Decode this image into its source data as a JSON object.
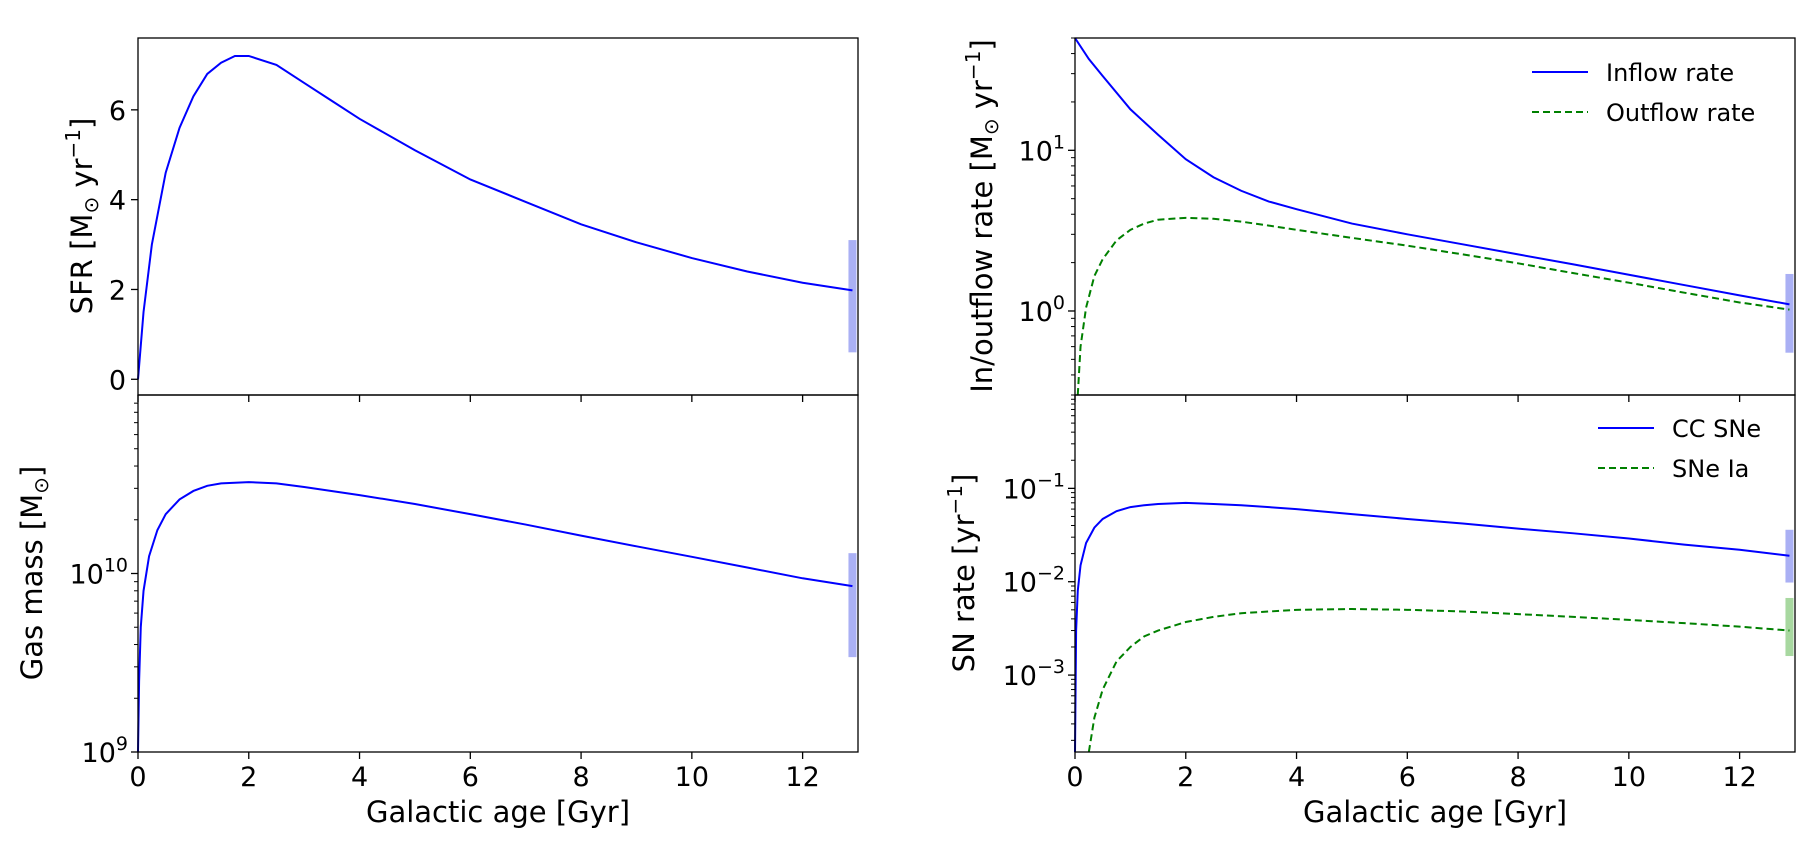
{
  "colors": {
    "inflow": "#0000ff",
    "outflow": "#008000",
    "band_blue": "#aab0f4",
    "band_green": "#a8d8a0"
  },
  "chart_data": [
    {
      "id": "sfr",
      "type": "line",
      "ylabel_main": "SFR [M",
      "ylabel_tail": " yr",
      "ylabel_sup": "−1",
      "ylabel_end": "]",
      "xlabel": "",
      "xlim": [
        0,
        13
      ],
      "ylim": [
        -0.35,
        7.6
      ],
      "yscale": "linear",
      "xticks": [
        0,
        2,
        4,
        6,
        8,
        10,
        12
      ],
      "yticks": [
        0,
        2,
        4,
        6
      ],
      "ytick_labels": [
        "0",
        "2",
        "4",
        "6"
      ],
      "band": {
        "x": 12.9,
        "range": [
          0.6,
          3.1
        ]
      },
      "series": [
        {
          "name": "SFR",
          "style": "solid",
          "x": [
            0,
            0.1,
            0.25,
            0.5,
            0.75,
            1,
            1.25,
            1.5,
            1.75,
            2,
            2.5,
            3,
            3.5,
            4,
            5,
            6,
            7,
            8,
            9,
            10,
            11,
            12,
            12.9
          ],
          "y": [
            0,
            1.5,
            3.0,
            4.6,
            5.6,
            6.3,
            6.8,
            7.05,
            7.2,
            7.2,
            7.0,
            6.6,
            6.2,
            5.8,
            5.1,
            4.45,
            3.95,
            3.45,
            3.05,
            2.7,
            2.4,
            2.15,
            1.98
          ]
        }
      ]
    },
    {
      "id": "inout",
      "type": "line",
      "ylabel_main": "In/outflow rate [M",
      "ylabel_tail": " yr",
      "ylabel_sup": "−1",
      "ylabel_end": "]",
      "xlabel": "",
      "xlim": [
        0,
        13
      ],
      "ylim": [
        0.3,
        50
      ],
      "yscale": "log",
      "xticks": [
        0,
        2,
        4,
        6,
        8,
        10,
        12
      ],
      "ytick_values": [
        1,
        10
      ],
      "ytick_base": [
        "10",
        "10"
      ],
      "ytick_exp": [
        "0",
        "1"
      ],
      "band": {
        "x": 12.9,
        "range": [
          0.55,
          1.7
        ]
      },
      "legend": [
        "Inflow rate",
        "Outflow rate"
      ],
      "series": [
        {
          "name": "Inflow rate",
          "style": "solid",
          "x": [
            0,
            0.25,
            0.5,
            1,
            1.5,
            2,
            2.5,
            3,
            3.5,
            4,
            5,
            6,
            7,
            8,
            9,
            10,
            11,
            12,
            12.9
          ],
          "y": [
            50,
            37,
            29,
            18,
            12.5,
            8.8,
            6.8,
            5.6,
            4.8,
            4.3,
            3.5,
            3.0,
            2.6,
            2.25,
            1.95,
            1.68,
            1.45,
            1.25,
            1.1
          ]
        },
        {
          "name": "Outflow rate",
          "style": "dashed",
          "x": [
            0.05,
            0.1,
            0.2,
            0.35,
            0.5,
            0.75,
            1,
            1.25,
            1.5,
            2,
            2.5,
            3,
            3.5,
            4,
            5,
            6,
            7,
            8,
            9,
            10,
            11,
            12,
            12.9
          ],
          "y": [
            0.3,
            0.6,
            1.05,
            1.65,
            2.1,
            2.75,
            3.2,
            3.5,
            3.7,
            3.8,
            3.75,
            3.6,
            3.4,
            3.2,
            2.85,
            2.55,
            2.25,
            1.98,
            1.72,
            1.5,
            1.3,
            1.13,
            1.02
          ]
        }
      ]
    },
    {
      "id": "gas",
      "type": "line",
      "ylabel_main": "Gas mass [M",
      "ylabel_tail": "",
      "ylabel_sup": "",
      "ylabel_end": "]",
      "xlabel": "Galactic age [Gyr]",
      "xlim": [
        0,
        13
      ],
      "ylim": [
        1000000000.0,
        100000000000.0
      ],
      "yscale": "log",
      "xticks": [
        0,
        2,
        4,
        6,
        8,
        10,
        12
      ],
      "ytick_values": [
        1000000000.0,
        10000000000.0
      ],
      "ytick_base": [
        "10",
        "10"
      ],
      "ytick_exp": [
        "9",
        "10"
      ],
      "band": {
        "x": 12.9,
        "range": [
          3400000000.0,
          13000000000.0
        ]
      },
      "series": [
        {
          "name": "Gas mass",
          "style": "solid",
          "x": [
            0,
            0.02,
            0.05,
            0.1,
            0.2,
            0.35,
            0.5,
            0.75,
            1,
            1.25,
            1.5,
            2,
            2.5,
            3,
            4,
            5,
            6,
            7,
            8,
            9,
            10,
            11,
            12,
            12.9
          ],
          "y": [
            1000000000.0,
            2500000000.0,
            5000000000.0,
            8000000000.0,
            12500000000.0,
            17500000000.0,
            21500000000.0,
            26000000000.0,
            29000000000.0,
            31000000000.0,
            32000000000.0,
            32500000000.0,
            32000000000.0,
            30500000000.0,
            27500000000.0,
            24500000000.0,
            21500000000.0,
            18800000000.0,
            16300000000.0,
            14200000000.0,
            12400000000.0,
            10800000000.0,
            9400000000.0,
            8500000000.0
          ]
        }
      ]
    },
    {
      "id": "sn",
      "type": "line",
      "ylabel_main": "SN rate [yr",
      "ylabel_tail": "",
      "ylabel_sup": "−1",
      "ylabel_end": "]",
      "xlabel": "Galactic age [Gyr]",
      "xlim": [
        0,
        13
      ],
      "ylim": [
        0.00015,
        1.0
      ],
      "yscale": "log",
      "xticks": [
        0,
        2,
        4,
        6,
        8,
        10,
        12
      ],
      "ytick_values": [
        0.001,
        0.01,
        0.1
      ],
      "ytick_base": [
        "10",
        "10",
        "10"
      ],
      "ytick_exp": [
        "−3",
        "−2",
        "−1"
      ],
      "band": {
        "x": 12.9,
        "range": [
          0.0098,
          0.036
        ]
      },
      "band2": {
        "x": 12.9,
        "range": [
          0.0016,
          0.0067
        ]
      },
      "legend": [
        "CC SNe",
        "SNe Ia"
      ],
      "series": [
        {
          "name": "CC SNe",
          "style": "solid",
          "x": [
            0,
            0.02,
            0.05,
            0.1,
            0.2,
            0.35,
            0.5,
            0.75,
            1,
            1.25,
            1.5,
            2,
            2.5,
            3,
            4,
            5,
            6,
            7,
            8,
            9,
            10,
            11,
            12,
            12.9
          ],
          "y": [
            0.00015,
            0.003,
            0.008,
            0.015,
            0.026,
            0.038,
            0.047,
            0.057,
            0.063,
            0.066,
            0.068,
            0.07,
            0.068,
            0.066,
            0.06,
            0.053,
            0.047,
            0.042,
            0.037,
            0.033,
            0.029,
            0.025,
            0.022,
            0.019
          ]
        },
        {
          "name": "SNe Ia",
          "style": "dashed",
          "x": [
            0.25,
            0.35,
            0.5,
            0.75,
            1,
            1.25,
            1.5,
            2,
            2.5,
            3,
            4,
            5,
            6,
            7,
            8,
            9,
            10,
            11,
            12,
            12.9
          ],
          "y": [
            0.00015,
            0.00035,
            0.0007,
            0.0014,
            0.002,
            0.0026,
            0.003,
            0.0037,
            0.0042,
            0.0046,
            0.005,
            0.0051,
            0.005,
            0.0048,
            0.0045,
            0.0042,
            0.0039,
            0.0036,
            0.0033,
            0.003
          ]
        }
      ]
    }
  ]
}
